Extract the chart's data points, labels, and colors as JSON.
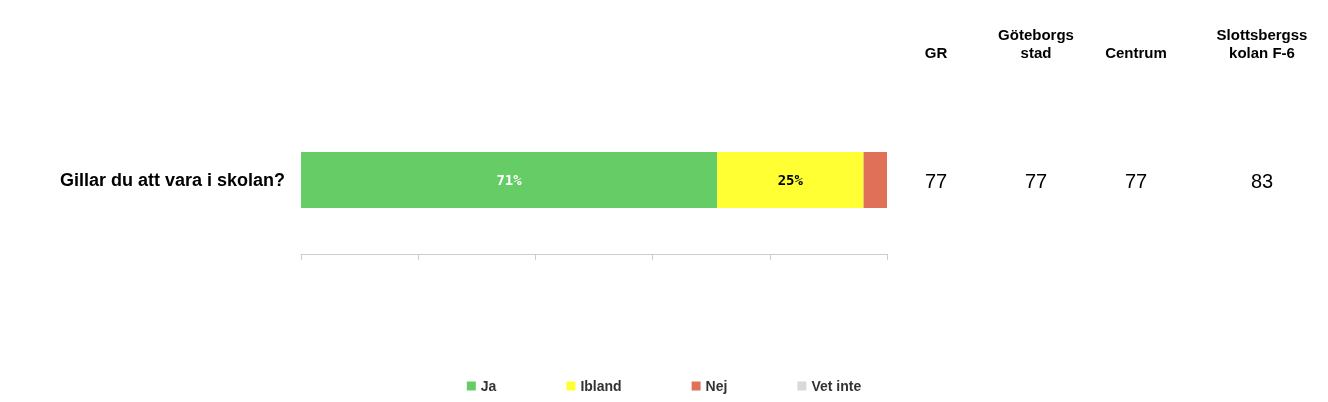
{
  "chart_data": [
    {
      "type": "bar",
      "orientation": "horizontal",
      "stacked": true,
      "categories": [
        "Gillar du att vara i skolan?"
      ],
      "series": [
        {
          "name": "Ja",
          "color": "#66cc66",
          "values": [
            71
          ],
          "value_labels": [
            "71%"
          ]
        },
        {
          "name": "Ibland",
          "color": "#ffff33",
          "values": [
            25
          ],
          "value_labels": [
            "25%"
          ]
        },
        {
          "name": "Nej",
          "color": "#e07058",
          "values": [
            4
          ],
          "value_labels": [
            null
          ]
        },
        {
          "name": "Vet inte",
          "color": "#d9d9d9",
          "values": [
            0
          ],
          "value_labels": [
            null
          ]
        }
      ],
      "xlim": [
        0,
        100
      ],
      "tick_labels": "y",
      "grid": false,
      "legend": "bottom"
    },
    {
      "type": "other",
      "categories": [
        "GR",
        "Göteborgs stad",
        "Centrum",
        "Slottsbergsskolan F-6"
      ],
      "values": [
        77,
        77,
        77,
        83
      ],
      "data_labels": true
    }
  ]
}
